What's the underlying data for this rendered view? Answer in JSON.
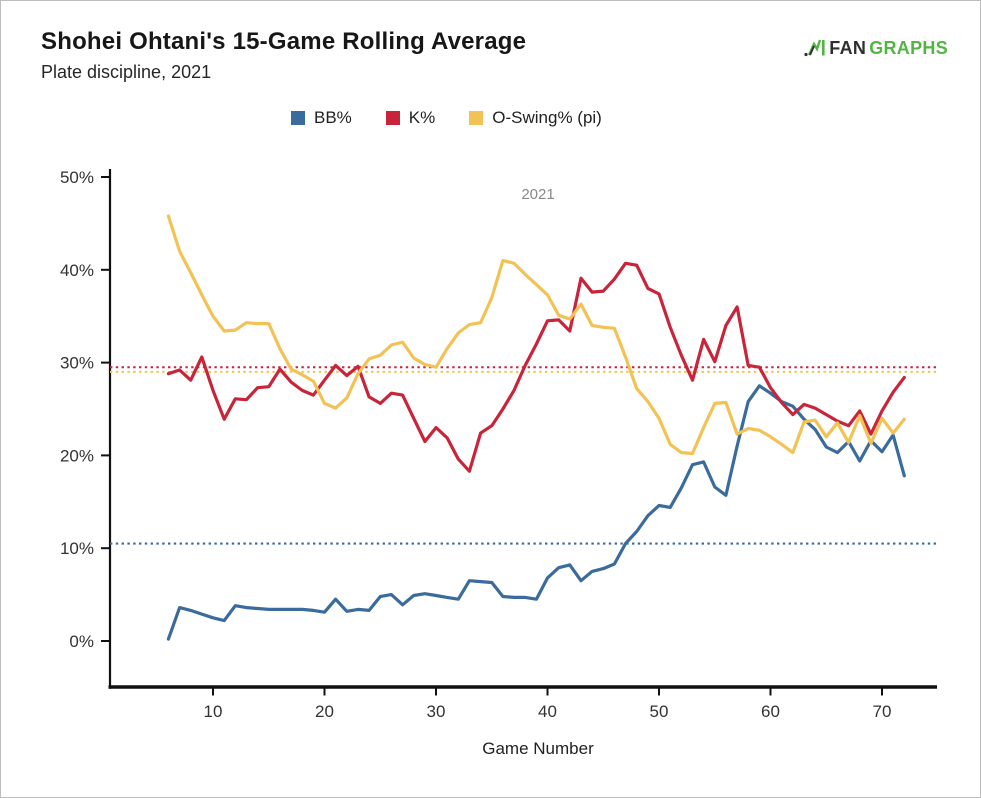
{
  "header": {
    "title": "Shohei Ohtani's 15-Game Rolling Average",
    "subtitle": "Plate discipline, 2021"
  },
  "logo": {
    "text_dark": "FAN",
    "text_green": "GRAPHS",
    "green_color": "#52b543",
    "dark_color": "#2f2f2f"
  },
  "legend": {
    "items": [
      {
        "label": "BB%",
        "color": "#3a6b9c"
      },
      {
        "label": "K%",
        "color": "#c8243a"
      },
      {
        "label": "O-Swing% (pi)",
        "color": "#f2c255"
      }
    ]
  },
  "chart_data": {
    "type": "line",
    "title": "Shohei Ohtani's 15-Game Rolling Average",
    "subtitle": "Plate discipline, 2021",
    "xlabel": "Game Number",
    "ylabel": "",
    "inner_label": "2021",
    "legend_position": "top",
    "grid": false,
    "xlim": [
      0.5,
      74.9
    ],
    "ylim": [
      -5,
      50.8
    ],
    "x_ticks": [
      {
        "value": 10,
        "label": "10"
      },
      {
        "value": 20,
        "label": "20"
      },
      {
        "value": 30,
        "label": "30"
      },
      {
        "value": 40,
        "label": "40"
      },
      {
        "value": 50,
        "label": "50"
      },
      {
        "value": 60,
        "label": "60"
      },
      {
        "value": 70,
        "label": "70"
      }
    ],
    "y_ticks": [
      {
        "value": 0,
        "label": "0%"
      },
      {
        "value": 10,
        "label": "10%"
      },
      {
        "value": 20,
        "label": "20%"
      },
      {
        "value": 30,
        "label": "30%"
      },
      {
        "value": 40,
        "label": "40%"
      },
      {
        "value": 50,
        "label": "50%"
      }
    ],
    "games": [
      6,
      7,
      8,
      9,
      10,
      11,
      12,
      13,
      14,
      15,
      16,
      17,
      18,
      19,
      20,
      21,
      22,
      23,
      24,
      25,
      26,
      27,
      28,
      29,
      30,
      31,
      32,
      33,
      34,
      35,
      36,
      37,
      38,
      39,
      40,
      41,
      42,
      43,
      44,
      45,
      46,
      47,
      48,
      49,
      50,
      51,
      52,
      53,
      54,
      55,
      56,
      57,
      58,
      59,
      60,
      61,
      62,
      63,
      64,
      65,
      66,
      67,
      68,
      69,
      70,
      71,
      72
    ],
    "series": [
      {
        "name": "BB%",
        "color": "#3a6b9c",
        "values": [
          0.2,
          3.6,
          3.3,
          2.9,
          2.5,
          2.2,
          3.8,
          3.6,
          3.5,
          3.4,
          3.4,
          3.4,
          3.4,
          3.3,
          3.1,
          4.5,
          3.2,
          3.4,
          3.3,
          4.8,
          5.0,
          3.9,
          4.9,
          5.1,
          4.9,
          4.7,
          4.5,
          6.5,
          6.4,
          6.3,
          4.8,
          4.7,
          4.7,
          4.5,
          6.8,
          7.9,
          8.2,
          6.5,
          7.5,
          7.8,
          8.3,
          10.5,
          11.8,
          13.5,
          14.6,
          14.4,
          16.5,
          19.0,
          19.3,
          16.6,
          15.7,
          21.0,
          25.8,
          27.5,
          26.7,
          25.8,
          25.3,
          23.9,
          22.8,
          20.9,
          20.3,
          21.5,
          19.4,
          21.6,
          20.4,
          22.2,
          17.8
        ]
      },
      {
        "name": "K%",
        "color": "#c8243a",
        "values": [
          28.8,
          29.2,
          28.1,
          30.6,
          27.0,
          23.9,
          26.1,
          26.0,
          27.3,
          27.4,
          29.3,
          27.9,
          27.0,
          26.5,
          28.1,
          29.7,
          28.6,
          29.6,
          26.3,
          25.6,
          26.7,
          26.5,
          24.0,
          21.5,
          23.0,
          21.9,
          19.6,
          18.3,
          22.4,
          23.2,
          25.0,
          27.0,
          29.7,
          32.0,
          34.5,
          34.6,
          33.4,
          39.1,
          37.6,
          37.7,
          39.0,
          40.7,
          40.5,
          38.0,
          37.4,
          33.8,
          30.8,
          28.1,
          32.5,
          30.1,
          34.0,
          36.0,
          29.7,
          29.5,
          27.3,
          25.7,
          24.4,
          25.5,
          25.1,
          24.4,
          23.7,
          23.2,
          24.8,
          22.3,
          24.8,
          26.8,
          28.4
        ]
      },
      {
        "name": "O-Swing% (pi)",
        "color": "#f2c255",
        "values": [
          45.8,
          42.0,
          39.7,
          37.3,
          35.0,
          33.4,
          33.5,
          34.3,
          34.2,
          34.2,
          31.5,
          29.3,
          28.7,
          28.0,
          25.6,
          25.1,
          26.2,
          28.8,
          30.4,
          30.8,
          31.9,
          32.2,
          30.5,
          29.8,
          29.5,
          31.5,
          33.2,
          34.1,
          34.3,
          37.0,
          41.0,
          40.7,
          39.5,
          38.4,
          37.3,
          35.1,
          34.7,
          36.3,
          34.0,
          33.8,
          33.7,
          30.6,
          27.2,
          25.8,
          24.0,
          21.2,
          20.3,
          20.2,
          23.0,
          25.6,
          25.7,
          22.3,
          22.9,
          22.7,
          22.0,
          21.2,
          20.3,
          23.6,
          23.8,
          22.0,
          23.5,
          21.4,
          24.3,
          21.3,
          24.0,
          22.4,
          23.9
        ]
      }
    ],
    "reference_lines": [
      {
        "series": "K%",
        "value": 29.5,
        "color": "#c8243a",
        "style": "dotted"
      },
      {
        "series": "O-Swing% (pi)",
        "value": 29.0,
        "color": "#f2c255",
        "style": "dotted"
      },
      {
        "series": "BB%",
        "value": 10.5,
        "color": "#3a6b9c",
        "style": "dotted"
      }
    ]
  }
}
